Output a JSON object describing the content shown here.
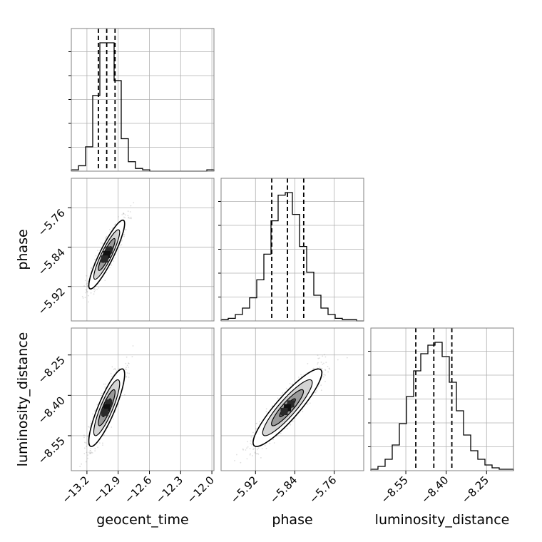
{
  "chart_data": {
    "type": "corner",
    "title": "",
    "parameters": [
      "geocent_time",
      "phase",
      "luminosity_distance"
    ],
    "ranges": {
      "geocent_time": [
        -13.35,
        -11.98
      ],
      "phase": [
        -5.99,
        -5.7
      ],
      "luminosity_distance": [
        -8.68,
        -8.15
      ]
    },
    "ticks": {
      "geocent_time": [
        "−13.2",
        "−12.9",
        "−12.6",
        "−12.3",
        "−12.0"
      ],
      "phase": [
        "−5.92",
        "−5.84",
        "−5.76"
      ],
      "luminosity_distance": [
        "−8.55",
        "−8.40",
        "−8.25"
      ]
    },
    "tick_values": {
      "geocent_time": [
        -13.2,
        -12.9,
        -12.6,
        -12.3,
        -12.0
      ],
      "phase": [
        -5.92,
        -5.84,
        -5.76
      ],
      "luminosity_distance": [
        -8.55,
        -8.4,
        -8.25
      ]
    },
    "quantiles": {
      "geocent_time": [
        -13.09,
        -13.01,
        -12.93
      ],
      "phase": [
        -5.887,
        -5.855,
        -5.822
      ],
      "luminosity_distance": [
        -8.513,
        -8.446,
        -8.379
      ]
    },
    "histograms": {
      "geocent_time": [
        1,
        4,
        18,
        56,
        95,
        95,
        67,
        24,
        7,
        2,
        1,
        0,
        0,
        0,
        0,
        0,
        0,
        0,
        0,
        1
      ],
      "phase": [
        1,
        2,
        5,
        10,
        18,
        32,
        52,
        78,
        98,
        100,
        83,
        58,
        38,
        20,
        10,
        5,
        2,
        1,
        1,
        0
      ],
      "luminosity_distance": [
        1,
        3,
        8,
        18,
        33,
        52,
        70,
        82,
        88,
        90,
        80,
        62,
        42,
        25,
        14,
        8,
        4,
        2,
        1,
        1
      ]
    },
    "correlations": {
      "phase|geocent_time": 0.9,
      "luminosity_distance|geocent_time": 0.86,
      "luminosity_distance|phase": 0.9
    },
    "histogram_ticks_shown": false,
    "grid": true
  }
}
